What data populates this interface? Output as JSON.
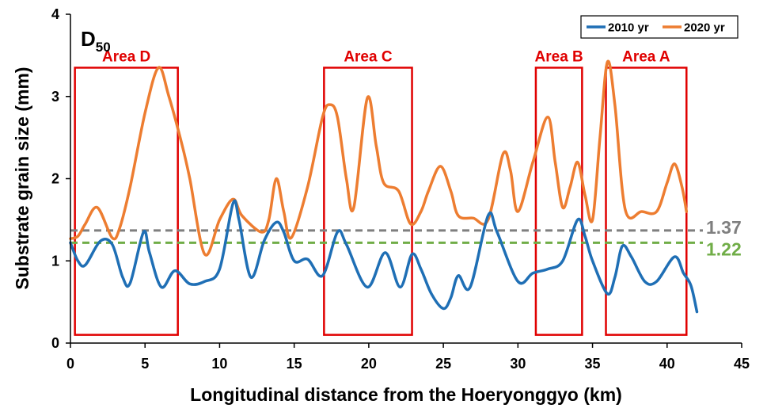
{
  "chart_data": {
    "type": "line",
    "panel_label": "D",
    "panel_label_sub": "50",
    "xlabel": "Longitudinal distance from the Hoeryonggyo  (km)",
    "ylabel": "Substrate grain size (mm)",
    "xlim": [
      0,
      45
    ],
    "ylim": [
      0,
      4
    ],
    "x_ticks": [
      0,
      5,
      10,
      15,
      20,
      25,
      30,
      35,
      40,
      45
    ],
    "y_ticks": [
      0,
      1,
      2,
      3,
      4
    ],
    "legend_position": "top-right",
    "series": [
      {
        "name": "2010 yr",
        "color": "#1f6fb5",
        "points": [
          [
            0,
            1.22
          ],
          [
            0.5,
            1.0
          ],
          [
            1,
            0.95
          ],
          [
            2,
            1.24
          ],
          [
            2.8,
            1.2
          ],
          [
            3.5,
            0.8
          ],
          [
            4,
            0.73
          ],
          [
            4.9,
            1.35
          ],
          [
            5.3,
            1.1
          ],
          [
            6.1,
            0.68
          ],
          [
            7,
            0.88
          ],
          [
            8,
            0.72
          ],
          [
            9,
            0.75
          ],
          [
            10,
            0.9
          ],
          [
            10.9,
            1.7
          ],
          [
            11.3,
            1.5
          ],
          [
            12.1,
            0.8
          ],
          [
            13,
            1.25
          ],
          [
            13.8,
            1.47
          ],
          [
            14.3,
            1.35
          ],
          [
            15,
            1.0
          ],
          [
            15.9,
            1.02
          ],
          [
            16.9,
            0.82
          ],
          [
            17.9,
            1.35
          ],
          [
            18.5,
            1.2
          ],
          [
            19.9,
            0.68
          ],
          [
            21.1,
            1.1
          ],
          [
            22.1,
            0.68
          ],
          [
            22.9,
            1.08
          ],
          [
            23.5,
            0.9
          ],
          [
            24.2,
            0.6
          ],
          [
            25,
            0.42
          ],
          [
            25.5,
            0.55
          ],
          [
            26,
            0.82
          ],
          [
            26.8,
            0.68
          ],
          [
            28,
            1.55
          ],
          [
            28.6,
            1.35
          ],
          [
            30,
            0.75
          ],
          [
            31,
            0.85
          ],
          [
            32,
            0.9
          ],
          [
            33,
            1.0
          ],
          [
            34,
            1.5
          ],
          [
            34.5,
            1.3
          ],
          [
            35,
            1.0
          ],
          [
            36,
            0.6
          ],
          [
            36.5,
            0.8
          ],
          [
            37,
            1.18
          ],
          [
            37.6,
            1.05
          ],
          [
            38.5,
            0.75
          ],
          [
            39.3,
            0.75
          ],
          [
            40.5,
            1.05
          ],
          [
            41.1,
            0.85
          ],
          [
            41.6,
            0.7
          ],
          [
            42,
            0.38
          ]
        ]
      },
      {
        "name": "2020 yr",
        "color": "#ed7d31",
        "points": [
          [
            0,
            1.27
          ],
          [
            0.5,
            1.3
          ],
          [
            1,
            1.45
          ],
          [
            1.8,
            1.65
          ],
          [
            2.8,
            1.28
          ],
          [
            3.3,
            1.4
          ],
          [
            4,
            1.9
          ],
          [
            5,
            2.8
          ],
          [
            5.9,
            3.35
          ],
          [
            6.6,
            3.0
          ],
          [
            7.5,
            2.4
          ],
          [
            8,
            2.0
          ],
          [
            9,
            1.08
          ],
          [
            10,
            1.5
          ],
          [
            10.9,
            1.75
          ],
          [
            11.5,
            1.55
          ],
          [
            12.8,
            1.35
          ],
          [
            13.3,
            1.5
          ],
          [
            13.8,
            2.0
          ],
          [
            14.3,
            1.6
          ],
          [
            14.8,
            1.28
          ],
          [
            15.9,
            1.9
          ],
          [
            16.9,
            2.75
          ],
          [
            17.4,
            2.9
          ],
          [
            17.9,
            2.75
          ],
          [
            18.5,
            2.0
          ],
          [
            19,
            1.65
          ],
          [
            19.9,
            2.98
          ],
          [
            20.5,
            2.4
          ],
          [
            21,
            1.95
          ],
          [
            22,
            1.85
          ],
          [
            22.8,
            1.45
          ],
          [
            23.5,
            1.6
          ],
          [
            24,
            1.85
          ],
          [
            24.8,
            2.15
          ],
          [
            25.5,
            1.85
          ],
          [
            26,
            1.55
          ],
          [
            27,
            1.52
          ],
          [
            28,
            1.5
          ],
          [
            29,
            2.3
          ],
          [
            29.5,
            2.1
          ],
          [
            30,
            1.6
          ],
          [
            31,
            2.2
          ],
          [
            32,
            2.75
          ],
          [
            32.5,
            2.2
          ],
          [
            33,
            1.65
          ],
          [
            33.5,
            1.9
          ],
          [
            34,
            2.2
          ],
          [
            34.5,
            1.8
          ],
          [
            35,
            1.5
          ],
          [
            35.5,
            2.5
          ],
          [
            36,
            3.42
          ],
          [
            36.5,
            2.9
          ],
          [
            37.2,
            1.62
          ],
          [
            38.3,
            1.6
          ],
          [
            39.3,
            1.6
          ],
          [
            40,
            1.95
          ],
          [
            40.5,
            2.18
          ],
          [
            41,
            1.9
          ],
          [
            41.3,
            1.6
          ]
        ]
      }
    ],
    "reference_lines": [
      {
        "value": 1.37,
        "label": "1.37",
        "color": "#7f7f7f"
      },
      {
        "value": 1.22,
        "label": "1.22",
        "color": "#70ad47"
      }
    ],
    "areas": [
      {
        "label": "Area D",
        "x_start": 0.3,
        "x_end": 7.2,
        "y_low": 0.1,
        "y_high": 3.35
      },
      {
        "label": "Area C",
        "x_start": 17.0,
        "x_end": 22.9,
        "y_low": 0.1,
        "y_high": 3.35
      },
      {
        "label": "Area B",
        "x_start": 31.2,
        "x_end": 34.3,
        "y_low": 0.1,
        "y_high": 3.35
      },
      {
        "label": "Area A",
        "x_start": 35.9,
        "x_end": 41.3,
        "y_low": 0.1,
        "y_high": 3.35
      }
    ],
    "area_color": "#e00000"
  }
}
